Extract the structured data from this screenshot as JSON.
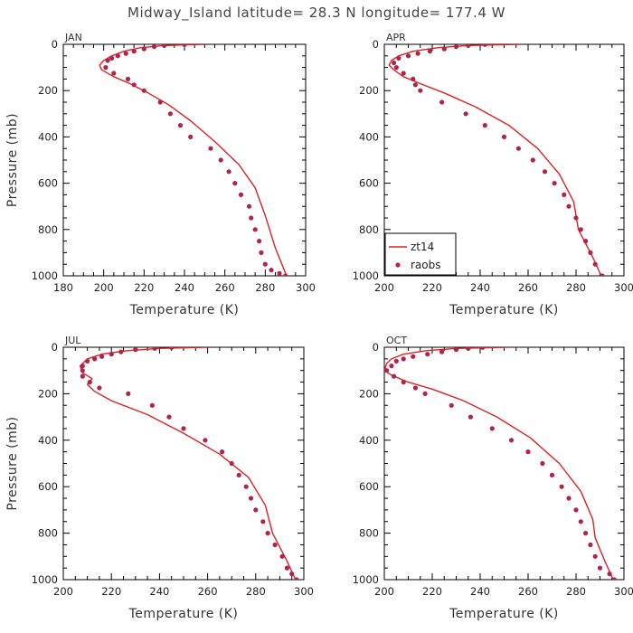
{
  "title": "Midway_Island  latitude= 28.3 N longitude= 177.4 W",
  "colors": {
    "model": "#e02020",
    "obs": "#b0244c",
    "axis": "#000000"
  },
  "legend": {
    "model_label": "zt14",
    "obs_label": "raobs"
  },
  "chart_data": [
    {
      "type": "line",
      "panel": "JAN",
      "xlabel": "Temperature (K)",
      "ylabel": "Pressure (mb)",
      "xlim": [
        180,
        300
      ],
      "ylim": [
        1000,
        0
      ],
      "xticks": [
        180,
        200,
        220,
        240,
        260,
        280,
        300
      ],
      "yticks": [
        0,
        200,
        400,
        600,
        800,
        1000
      ],
      "series": [
        {
          "name": "zt14",
          "style": "line",
          "x": [
            250,
            230,
            218,
            210,
            204,
            200,
            198,
            199,
            205,
            213,
            222,
            232,
            243,
            255,
            267,
            275,
            280,
            285,
            291
          ],
          "y": [
            0,
            5,
            15,
            30,
            50,
            70,
            90,
            110,
            140,
            170,
            210,
            260,
            330,
            420,
            520,
            620,
            740,
            880,
            1010
          ]
        },
        {
          "name": "raobs",
          "style": "points",
          "x": [
            240,
            230,
            225,
            220,
            215,
            211,
            207,
            204,
            202,
            201,
            205,
            212,
            215,
            220,
            228,
            233,
            238,
            243,
            253,
            258,
            262,
            265,
            268,
            272,
            273,
            275,
            277,
            278,
            280,
            283,
            287,
            290
          ],
          "y": [
            1,
            5,
            10,
            20,
            30,
            40,
            50,
            60,
            70,
            100,
            125,
            150,
            175,
            200,
            250,
            300,
            350,
            400,
            450,
            500,
            550,
            600,
            650,
            700,
            750,
            800,
            850,
            900,
            950,
            975,
            990,
            1000
          ]
        }
      ]
    },
    {
      "type": "line",
      "panel": "APR",
      "xlabel": "Temperature (K)",
      "ylabel": "",
      "xlim": [
        200,
        300
      ],
      "ylim": [
        1000,
        0
      ],
      "xticks": [
        200,
        220,
        240,
        260,
        280,
        300
      ],
      "yticks": [
        0,
        200,
        400,
        600,
        800,
        1000
      ],
      "series": [
        {
          "name": "zt14",
          "style": "line",
          "x": [
            257,
            235,
            222,
            212,
            206,
            203,
            202,
            204,
            208,
            215,
            225,
            238,
            252,
            264,
            273,
            279,
            281,
            287,
            291
          ],
          "y": [
            0,
            5,
            15,
            30,
            50,
            70,
            90,
            110,
            140,
            170,
            210,
            270,
            350,
            450,
            560,
            680,
            800,
            920,
            1010
          ]
        },
        {
          "name": "raobs",
          "style": "points",
          "x": [
            242,
            235,
            230,
            225,
            219,
            214,
            210,
            206,
            204,
            205,
            208,
            212,
            213,
            215,
            224,
            234,
            242,
            250,
            256,
            262,
            267,
            271,
            275,
            277,
            280,
            282,
            284,
            286,
            288,
            291
          ],
          "y": [
            1,
            5,
            10,
            20,
            30,
            40,
            50,
            60,
            80,
            100,
            125,
            150,
            175,
            200,
            250,
            300,
            350,
            400,
            450,
            500,
            550,
            600,
            650,
            700,
            750,
            800,
            850,
            900,
            950,
            1000
          ]
        }
      ]
    },
    {
      "type": "line",
      "panel": "JUL",
      "xlabel": "Temperature (K)",
      "ylabel": "Pressure (mb)",
      "xlim": [
        200,
        300
      ],
      "ylim": [
        1000,
        0
      ],
      "xticks": [
        200,
        220,
        240,
        260,
        280,
        300
      ],
      "yticks": [
        0,
        200,
        400,
        600,
        800,
        1000
      ],
      "series": [
        {
          "name": "zt14",
          "style": "line",
          "x": [
            260,
            240,
            226,
            216,
            210,
            207,
            208,
            212,
            210,
            213,
            220,
            235,
            250,
            265,
            277,
            284,
            287,
            293,
            297
          ],
          "y": [
            0,
            5,
            15,
            30,
            50,
            80,
            110,
            135,
            160,
            190,
            230,
            290,
            370,
            460,
            560,
            680,
            800,
            920,
            1010
          ]
        },
        {
          "name": "raobs",
          "style": "points",
          "x": [
            245,
            238,
            230,
            224,
            220,
            216,
            213,
            210,
            208,
            208,
            208,
            211,
            215,
            227,
            237,
            244,
            250,
            259,
            266,
            270,
            273,
            276,
            278,
            280,
            283,
            285,
            288,
            291,
            293,
            295,
            297
          ],
          "y": [
            1,
            5,
            10,
            20,
            30,
            40,
            50,
            60,
            80,
            100,
            125,
            150,
            175,
            200,
            250,
            300,
            350,
            400,
            450,
            500,
            550,
            600,
            650,
            700,
            750,
            800,
            850,
            900,
            950,
            975,
            1000
          ]
        }
      ]
    },
    {
      "type": "line",
      "panel": "OCT",
      "xlabel": "Temperature (K)",
      "ylabel": "",
      "xlim": [
        200,
        300
      ],
      "ylim": [
        1000,
        0
      ],
      "xticks": [
        200,
        220,
        240,
        260,
        280,
        300
      ],
      "yticks": [
        0,
        200,
        400,
        600,
        800,
        1000
      ],
      "series": [
        {
          "name": "zt14",
          "style": "line",
          "x": [
            252,
            230,
            217,
            208,
            203,
            201,
            200,
            203,
            210,
            220,
            233,
            247,
            261,
            273,
            282,
            287,
            288,
            292,
            296
          ],
          "y": [
            0,
            5,
            15,
            30,
            50,
            70,
            100,
            120,
            150,
            180,
            230,
            300,
            390,
            500,
            620,
            740,
            820,
            920,
            1010
          ]
        },
        {
          "name": "raobs",
          "style": "points",
          "x": [
            241,
            235,
            230,
            224,
            218,
            212,
            208,
            205,
            203,
            201,
            204,
            208,
            213,
            217,
            228,
            236,
            245,
            253,
            260,
            266,
            270,
            274,
            277,
            280,
            282,
            284,
            286,
            288,
            290,
            294,
            296
          ],
          "y": [
            1,
            5,
            10,
            20,
            30,
            40,
            50,
            60,
            80,
            100,
            125,
            150,
            175,
            200,
            250,
            300,
            350,
            400,
            450,
            500,
            550,
            600,
            650,
            700,
            750,
            800,
            850,
            900,
            950,
            975,
            1000
          ]
        }
      ]
    }
  ]
}
